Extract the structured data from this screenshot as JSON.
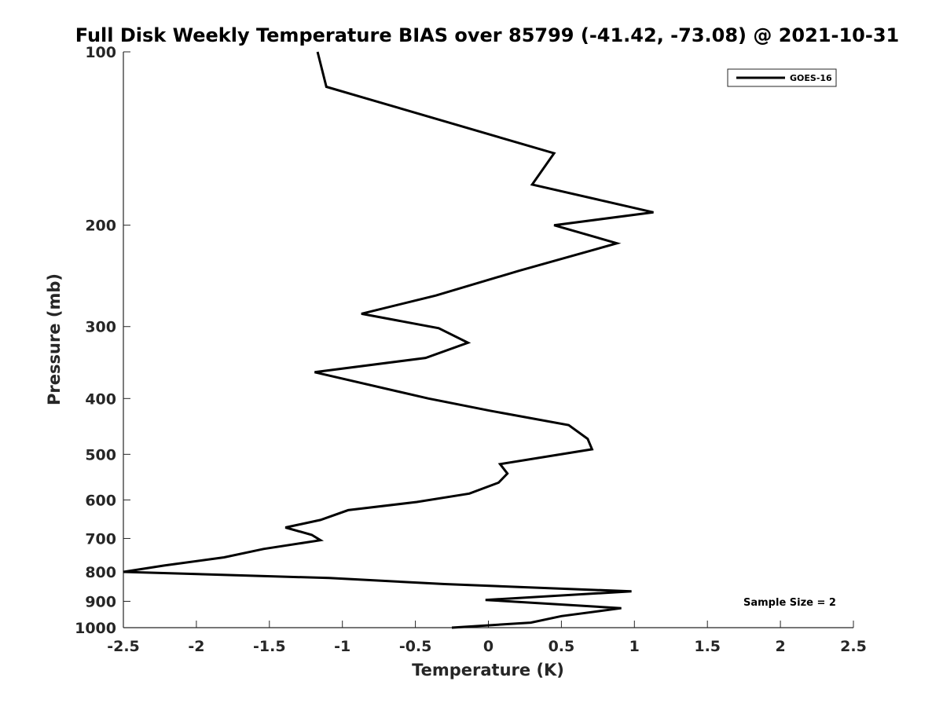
{
  "chart_data": {
    "type": "line",
    "title": "Full Disk Weekly Temperature BIAS over 85799 (-41.42, -73.08) @ 2021-10-31",
    "xlabel": "Temperature (K)",
    "ylabel": "Pressure (mb)",
    "xlim": [
      -2.5,
      2.5
    ],
    "ylim": [
      100,
      1000
    ],
    "y_scale": "log",
    "y_reversed": true,
    "grid": false,
    "legend_position": "top-right",
    "x_ticks": [
      -2.5,
      -2,
      -1.5,
      -1,
      -0.5,
      0,
      0.5,
      1,
      1.5,
      2,
      2.5
    ],
    "x_tick_labels": [
      "-2.5",
      "-2",
      "-1.5",
      "-1",
      "-0.5",
      "0",
      "0.5",
      "1",
      "1.5",
      "2",
      "2.5"
    ],
    "y_ticks": [
      100,
      200,
      300,
      400,
      500,
      600,
      700,
      800,
      900,
      1000
    ],
    "y_tick_labels": [
      "100",
      "200",
      "300",
      "400",
      "500",
      "600",
      "700",
      "800",
      "900",
      "1000"
    ],
    "annotation": "Sample Size = 2",
    "series": [
      {
        "name": "GOES-16",
        "color": "#000000",
        "x": [
          -1.17,
          -1.11,
          0.45,
          0.3,
          1.13,
          0.45,
          0.88,
          0.21,
          -0.36,
          -0.87,
          -0.34,
          -0.14,
          -0.43,
          -1.19,
          -0.41,
          0.01,
          0.55,
          0.68,
          0.71,
          0.08,
          0.13,
          0.07,
          -0.13,
          -0.49,
          -0.96,
          -1.15,
          -1.39,
          -1.21,
          -1.15,
          -1.54,
          -1.81,
          -2.22,
          -2.5,
          -1.09,
          -0.3,
          0.98,
          -0.02,
          0.91,
          0.5,
          0.29,
          -0.25
        ],
        "y": [
          100,
          115,
          150,
          170,
          190,
          200,
          215,
          240,
          265,
          285,
          302,
          320,
          340,
          360,
          400,
          420,
          445,
          470,
          490,
          520,
          540,
          560,
          585,
          605,
          625,
          650,
          670,
          690,
          705,
          730,
          755,
          780,
          800,
          820,
          840,
          865,
          895,
          925,
          955,
          980,
          1000
        ]
      }
    ]
  }
}
